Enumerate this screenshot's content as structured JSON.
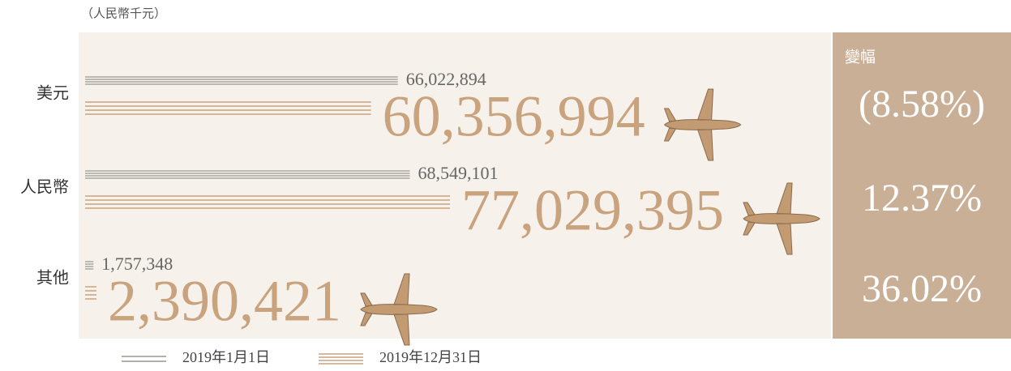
{
  "chart_data": {
    "type": "bar",
    "subtitle": "（人民幣千元）",
    "categories": [
      "美元",
      "人民幣",
      "其他"
    ],
    "series": [
      {
        "name": "2019年1月1日",
        "color": "#9a9792",
        "values": [
          66022894,
          68549101,
          1757348
        ],
        "value_labels": [
          "66,022,894",
          "68,549,101",
          "1,757,348"
        ]
      },
      {
        "name": "2019年12月31日",
        "color": "#c9a27e",
        "values": [
          60356994,
          77029395,
          2390421
        ],
        "value_labels": [
          "60,356,994",
          "77,029,395",
          "2,390,421"
        ]
      }
    ],
    "change": {
      "title": "變幅",
      "values": [
        -8.58,
        12.37,
        36.02
      ],
      "value_labels": [
        "(8.58%)",
        "12.37%",
        "36.02%"
      ]
    }
  }
}
